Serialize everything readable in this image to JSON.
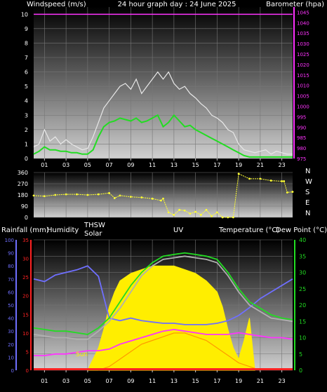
{
  "colors": {
    "wind_speed": "#e8e8e8",
    "wind_avg": "#22dd22",
    "barometer": "#ff33ff",
    "direction": "#ffff33",
    "rain": "#ff2222",
    "humidity": "#6f6fff",
    "solar": "#ffee00",
    "uv": "#ff9900",
    "temperature": "#22dd22",
    "thsw": "#b0b0b0",
    "dew": "#ff33ff"
  },
  "chart_data": [
    {
      "type": "line",
      "title": "24 hour graph day : 24 June 2025",
      "ylabel_left": "Windspeed (m/s)",
      "ylabel_right": "Barometer (hpa)",
      "x_ticks": [
        "01",
        "03",
        "05",
        "07",
        "09",
        "11",
        "13",
        "15",
        "17",
        "19",
        "21",
        "23"
      ],
      "ylim_left": [
        0,
        10.5
      ],
      "y_ticks_left": [
        "0",
        "1",
        "2",
        "3",
        "4",
        "5",
        "6",
        "7",
        "8",
        "9",
        "10"
      ],
      "ylim_right": [
        975,
        1047.5
      ],
      "y_ticks_right": [
        "975",
        "980",
        "985",
        "990",
        "995",
        "1000",
        "1005",
        "1010",
        "1015",
        "1020",
        "1025",
        "1030",
        "1035",
        "1040",
        "1045"
      ],
      "grid": true,
      "series": [
        {
          "role": "wind-speed",
          "x": [
            0,
            0.5,
            1,
            1.5,
            2,
            2.5,
            3,
            3.5,
            4,
            4.5,
            5,
            5.5,
            6,
            6.5,
            7,
            7.5,
            8,
            8.5,
            9,
            9.5,
            10,
            10.5,
            11,
            11.5,
            12,
            12.5,
            13,
            13.5,
            14,
            14.5,
            15,
            15.5,
            16,
            16.5,
            17,
            17.5,
            18,
            18.5,
            19,
            19.5,
            20,
            20.5,
            21,
            21.5,
            22,
            22.5,
            23,
            23.5,
            24
          ],
          "values": [
            0.8,
            1.0,
            2.0,
            1.2,
            1.5,
            1.0,
            1.3,
            1.0,
            0.8,
            0.6,
            0.7,
            1.5,
            2.5,
            3.5,
            4.0,
            4.5,
            5.0,
            5.2,
            4.8,
            5.5,
            4.5,
            5.0,
            5.5,
            6.0,
            5.5,
            6.0,
            5.2,
            4.8,
            5.0,
            4.5,
            4.2,
            3.8,
            3.5,
            3.0,
            2.8,
            2.5,
            2.0,
            1.8,
            1.0,
            0.6,
            0.5,
            0.4,
            0.5,
            0.6,
            0.3,
            0.5,
            0.4,
            0.3,
            0.3
          ]
        },
        {
          "role": "wind-avg",
          "x": [
            0,
            0.5,
            1,
            1.5,
            2,
            2.5,
            3,
            3.5,
            4,
            4.5,
            5,
            5.5,
            6,
            6.5,
            7,
            7.5,
            8,
            8.5,
            9,
            9.5,
            10,
            10.5,
            11,
            11.5,
            12,
            12.5,
            13,
            13.5,
            14,
            14.5,
            15,
            15.5,
            16,
            16.5,
            17,
            17.5,
            18,
            18.5,
            19,
            19.5,
            20,
            20.5,
            21,
            21.5,
            22,
            22.5,
            23,
            23.5,
            24
          ],
          "values": [
            0.3,
            0.5,
            0.8,
            0.6,
            0.6,
            0.5,
            0.5,
            0.4,
            0.4,
            0.3,
            0.3,
            0.6,
            1.5,
            2.2,
            2.5,
            2.6,
            2.8,
            2.7,
            2.6,
            2.8,
            2.5,
            2.6,
            2.8,
            3.0,
            2.2,
            2.5,
            3.0,
            2.6,
            2.2,
            2.3,
            2.0,
            1.8,
            1.6,
            1.4,
            1.2,
            1.0,
            0.8,
            0.6,
            0.4,
            0.2,
            0.1,
            0.1,
            0.1,
            0.1,
            0.1,
            0.1,
            0.1,
            0.1,
            0.1
          ]
        },
        {
          "role": "barometer",
          "x": [
            0,
            24
          ],
          "values": [
            1044,
            1044
          ]
        }
      ]
    },
    {
      "type": "line",
      "ylim": [
        0,
        360
      ],
      "y_ticks": [
        "0",
        "90",
        "180",
        "270",
        "360"
      ],
      "compass_labels": [
        "N",
        "W",
        "S",
        "E",
        "N"
      ],
      "x_ticks": [
        "01",
        "03",
        "05",
        "07",
        "09",
        "11",
        "13",
        "15",
        "17",
        "19",
        "21",
        "23"
      ],
      "grid": true,
      "series": [
        {
          "role": "wind-direction",
          "x": [
            0,
            1,
            2,
            3,
            4,
            5,
            6,
            7,
            7.5,
            8,
            9,
            10,
            11,
            11.8,
            12,
            12.5,
            13,
            13.5,
            14,
            14.5,
            15,
            15.5,
            16,
            16.5,
            17,
            17.5,
            18,
            18.5,
            19,
            20,
            21,
            22,
            23,
            23.2,
            23.5,
            24
          ],
          "values": [
            175,
            170,
            180,
            185,
            185,
            180,
            185,
            195,
            155,
            175,
            165,
            160,
            150,
            135,
            150,
            40,
            20,
            60,
            55,
            30,
            45,
            20,
            60,
            10,
            40,
            0,
            0,
            0,
            350,
            310,
            310,
            295,
            290,
            290,
            200,
            205
          ]
        }
      ]
    },
    {
      "type": "line",
      "ylabels_left": [
        "Rainfall (mm)",
        "Humidity"
      ],
      "ylabels_mid": [
        "THSW",
        "Solar",
        "UV"
      ],
      "ylabels_right": [
        "Temperature (°C)",
        "Dew Point (°C)"
      ],
      "legend_sun": "Sun",
      "x_ticks": [
        "01",
        "03",
        "05",
        "07",
        "09",
        "11",
        "13",
        "15",
        "17",
        "19",
        "21",
        "23"
      ],
      "humidity_ticks": [
        "0",
        "10",
        "20",
        "30",
        "40",
        "50",
        "60",
        "70",
        "80",
        "90",
        "100"
      ],
      "rain_ticks": [
        "0",
        "5",
        "10",
        "15",
        "20",
        "25",
        "30",
        "35"
      ],
      "temp_ticks": [
        "0",
        "5",
        "10",
        "15",
        "20",
        "25",
        "30",
        "35",
        "40"
      ],
      "ylim_humidity": [
        0,
        100
      ],
      "ylim_rain": [
        0,
        35
      ],
      "ylim_temp": [
        0,
        40
      ],
      "grid": true,
      "series": [
        {
          "role": "humidity",
          "x": [
            0,
            1,
            2,
            3,
            4,
            5,
            6,
            7,
            8,
            9,
            10,
            11,
            12,
            13,
            14,
            15,
            16,
            17,
            18,
            19,
            20,
            21,
            22,
            23,
            24
          ],
          "values": [
            70,
            68,
            73,
            75,
            77,
            80,
            72,
            40,
            38,
            40,
            38,
            37,
            36,
            36,
            35,
            35,
            35,
            36,
            38,
            42,
            48,
            55,
            60,
            65,
            70
          ]
        },
        {
          "role": "temperature",
          "x": [
            0,
            1,
            2,
            3,
            4,
            5,
            6,
            7,
            8,
            9,
            10,
            11,
            12,
            13,
            14,
            15,
            16,
            17,
            18,
            19,
            20,
            21,
            22,
            23,
            24
          ],
          "values": [
            13,
            12.5,
            12,
            12,
            11.5,
            11,
            13,
            16,
            21,
            26,
            30,
            33,
            35,
            35.5,
            36,
            35.5,
            35,
            34,
            30,
            25,
            21,
            19,
            17,
            16,
            15.5
          ]
        },
        {
          "role": "thsw",
          "x": [
            0,
            1,
            2,
            3,
            4,
            5,
            6,
            7,
            8,
            9,
            10,
            11,
            12,
            13,
            14,
            15,
            16,
            17,
            18,
            19,
            20,
            21,
            22,
            23,
            24
          ],
          "values": [
            11,
            10.5,
            10,
            10,
            9.5,
            9.5,
            12,
            15,
            19,
            24,
            29,
            32,
            34,
            34.5,
            35,
            34.5,
            34,
            33,
            29,
            24,
            20,
            18,
            16,
            15.5,
            15
          ]
        },
        {
          "role": "dew-point",
          "x": [
            0,
            1,
            2,
            3,
            4,
            5,
            6,
            7,
            8,
            9,
            10,
            11,
            12,
            13,
            14,
            15,
            16,
            17,
            18,
            19,
            20,
            21,
            22,
            23,
            24
          ],
          "values": [
            4.5,
            4.5,
            5,
            5,
            5.5,
            6,
            6,
            6.5,
            8,
            9,
            10,
            11,
            12,
            12.5,
            12,
            11.5,
            11,
            11,
            11,
            11.5,
            11,
            10.5,
            10,
            10,
            9.5
          ]
        },
        {
          "role": "solar",
          "x": [
            5,
            5.5,
            6,
            6.5,
            7,
            7.5,
            8,
            9,
            10,
            11,
            12,
            13,
            14,
            15,
            16,
            17,
            17.5,
            18,
            18.5,
            19,
            19.5,
            20,
            20.5
          ],
          "values": [
            0,
            3,
            6,
            11,
            17,
            21,
            24,
            26,
            27,
            28,
            28,
            28,
            27,
            26,
            24,
            21,
            17,
            11,
            6,
            3,
            8,
            14,
            0
          ],
          "ylim": [
            0,
            35
          ]
        },
        {
          "role": "uv",
          "x": [
            6,
            7,
            8,
            9,
            10,
            11,
            12,
            13,
            14,
            15,
            16,
            17,
            18,
            19,
            20,
            21
          ],
          "values": [
            0,
            1,
            3,
            5,
            7,
            8,
            9,
            10,
            10,
            9,
            8,
            6,
            4,
            2,
            1,
            0
          ],
          "ylim": [
            0,
            35
          ]
        },
        {
          "role": "rainfall",
          "x": [
            0,
            24
          ],
          "values": [
            0,
            0
          ]
        }
      ]
    }
  ]
}
